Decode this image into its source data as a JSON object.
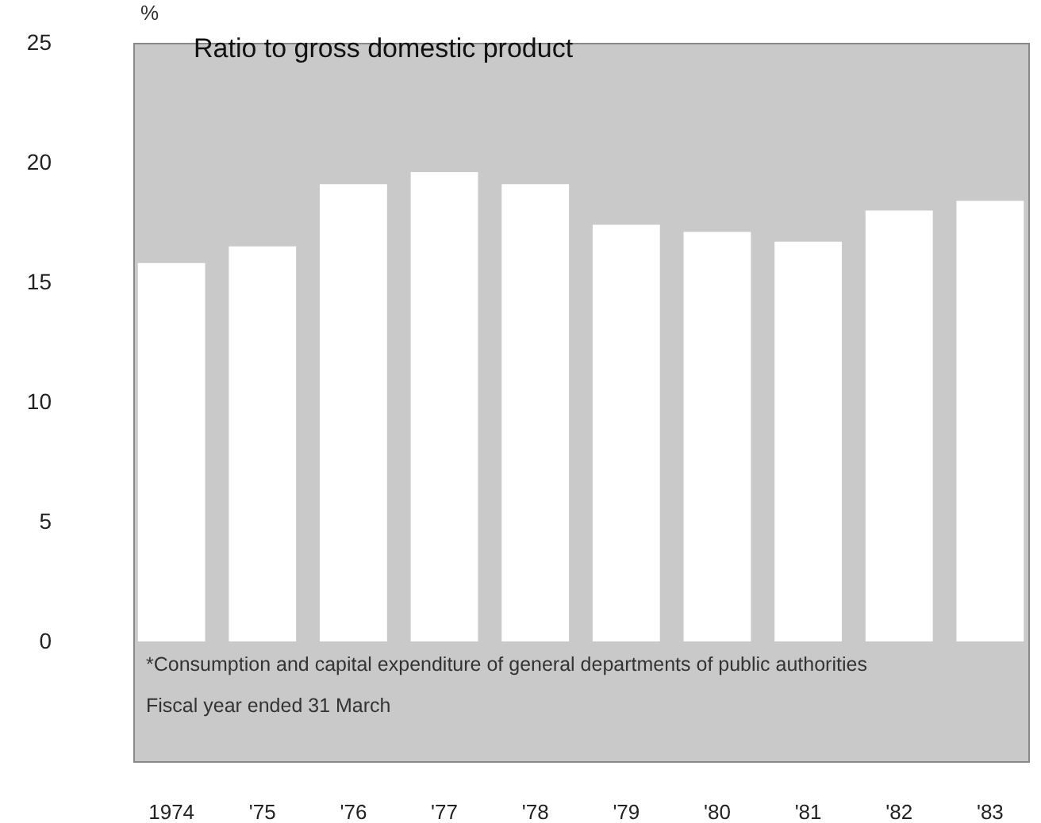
{
  "chart_data": {
    "type": "bar",
    "title": "Ratio to gross domestic product",
    "ylabel": "%",
    "categories": [
      "1974",
      "'75",
      "'76",
      "'77",
      "'78",
      "'79",
      "'80",
      "'81",
      "'82",
      "'83"
    ],
    "values": [
      15.8,
      16.5,
      19.1,
      19.6,
      19.1,
      17.4,
      17.1,
      16.7,
      18.0,
      18.4
    ],
    "color": "#ffffff",
    "ylim": [
      -5,
      25
    ],
    "yticks": [
      0,
      5,
      10,
      15,
      20,
      25
    ],
    "grid": false,
    "annotations": [
      "*Consumption and capital expenditure of general departments of public authorities",
      "Fiscal year ended 31 March"
    ]
  }
}
